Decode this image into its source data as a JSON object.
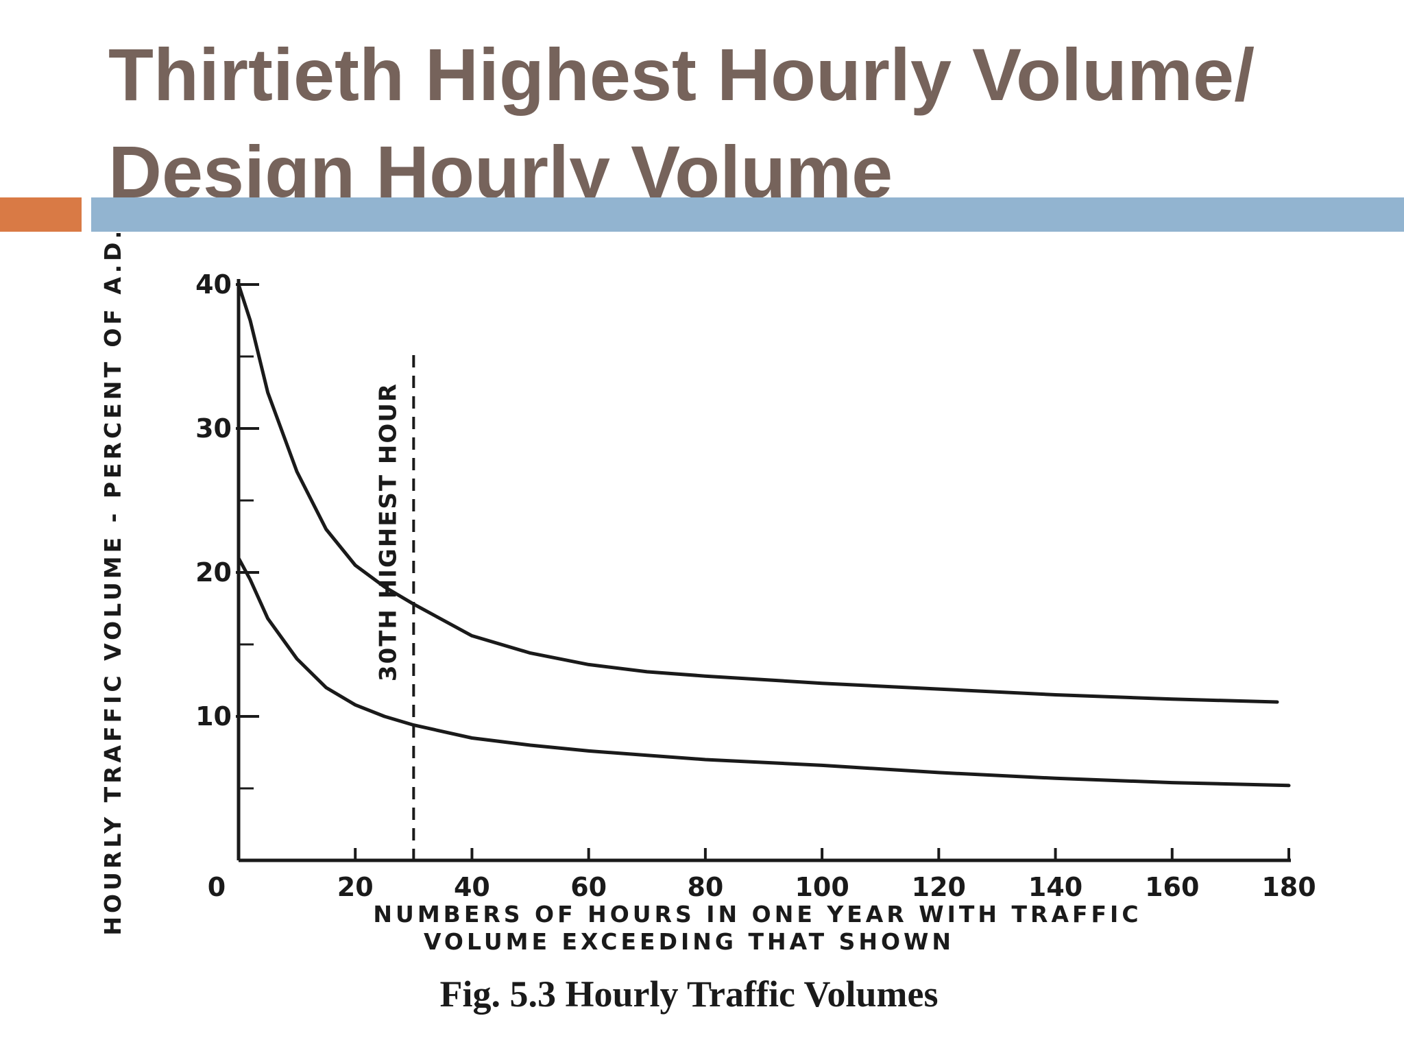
{
  "slide": {
    "title": "Thirtieth Highest Hourly Volume/\nDesign Hourly Volume",
    "accent_color": "#d97a45",
    "rule_color": "#92b4d0",
    "title_color": "#76635b"
  },
  "chart_data": {
    "type": "line",
    "title": "",
    "caption": "Fig. 5.3  Hourly Traffic Volumes",
    "xlabel_lines": [
      "NUMBERS OF HOURS IN ONE YEAR WITH TRAFFIC",
      "VOLUME EXCEEDING THAT SHOWN"
    ],
    "ylabel": "HOURLY TRAFFIC VOLUME - PERCENT OF A.D.T",
    "xlim": [
      0,
      180
    ],
    "ylim": [
      0,
      40
    ],
    "x_ticks": [
      0,
      20,
      40,
      60,
      80,
      100,
      120,
      140,
      160,
      180
    ],
    "x_tick_labels": [
      "0",
      "20",
      "40",
      "60",
      "80",
      "100",
      "120",
      "140",
      "160",
      "180"
    ],
    "y_ticks": [
      10,
      20,
      30,
      40
    ],
    "y_tick_labels": [
      "10",
      "20",
      "30",
      "40"
    ],
    "y_minor_ticks": [
      5,
      15,
      25,
      35
    ],
    "grid": false,
    "legend": "none",
    "series": [
      {
        "x": [
          0,
          2,
          5,
          10,
          15,
          20,
          25,
          30,
          40,
          50,
          60,
          70,
          80,
          100,
          120,
          140,
          160,
          178
        ],
        "y": [
          40,
          37.5,
          32.5,
          27,
          23,
          20.5,
          19,
          17.8,
          15.6,
          14.4,
          13.6,
          13.1,
          12.8,
          12.3,
          11.9,
          11.5,
          11.2,
          11.0
        ]
      },
      {
        "x": [
          0,
          2,
          5,
          10,
          15,
          20,
          25,
          30,
          40,
          50,
          60,
          70,
          80,
          100,
          120,
          140,
          160,
          180
        ],
        "y": [
          21,
          19.5,
          16.8,
          14,
          12,
          10.8,
          10.0,
          9.4,
          8.5,
          8.0,
          7.6,
          7.3,
          7.0,
          6.6,
          6.1,
          5.7,
          5.4,
          5.2
        ]
      }
    ],
    "annotations": [
      {
        "text": "30TH HIGHEST HOUR",
        "x": 30
      }
    ]
  }
}
